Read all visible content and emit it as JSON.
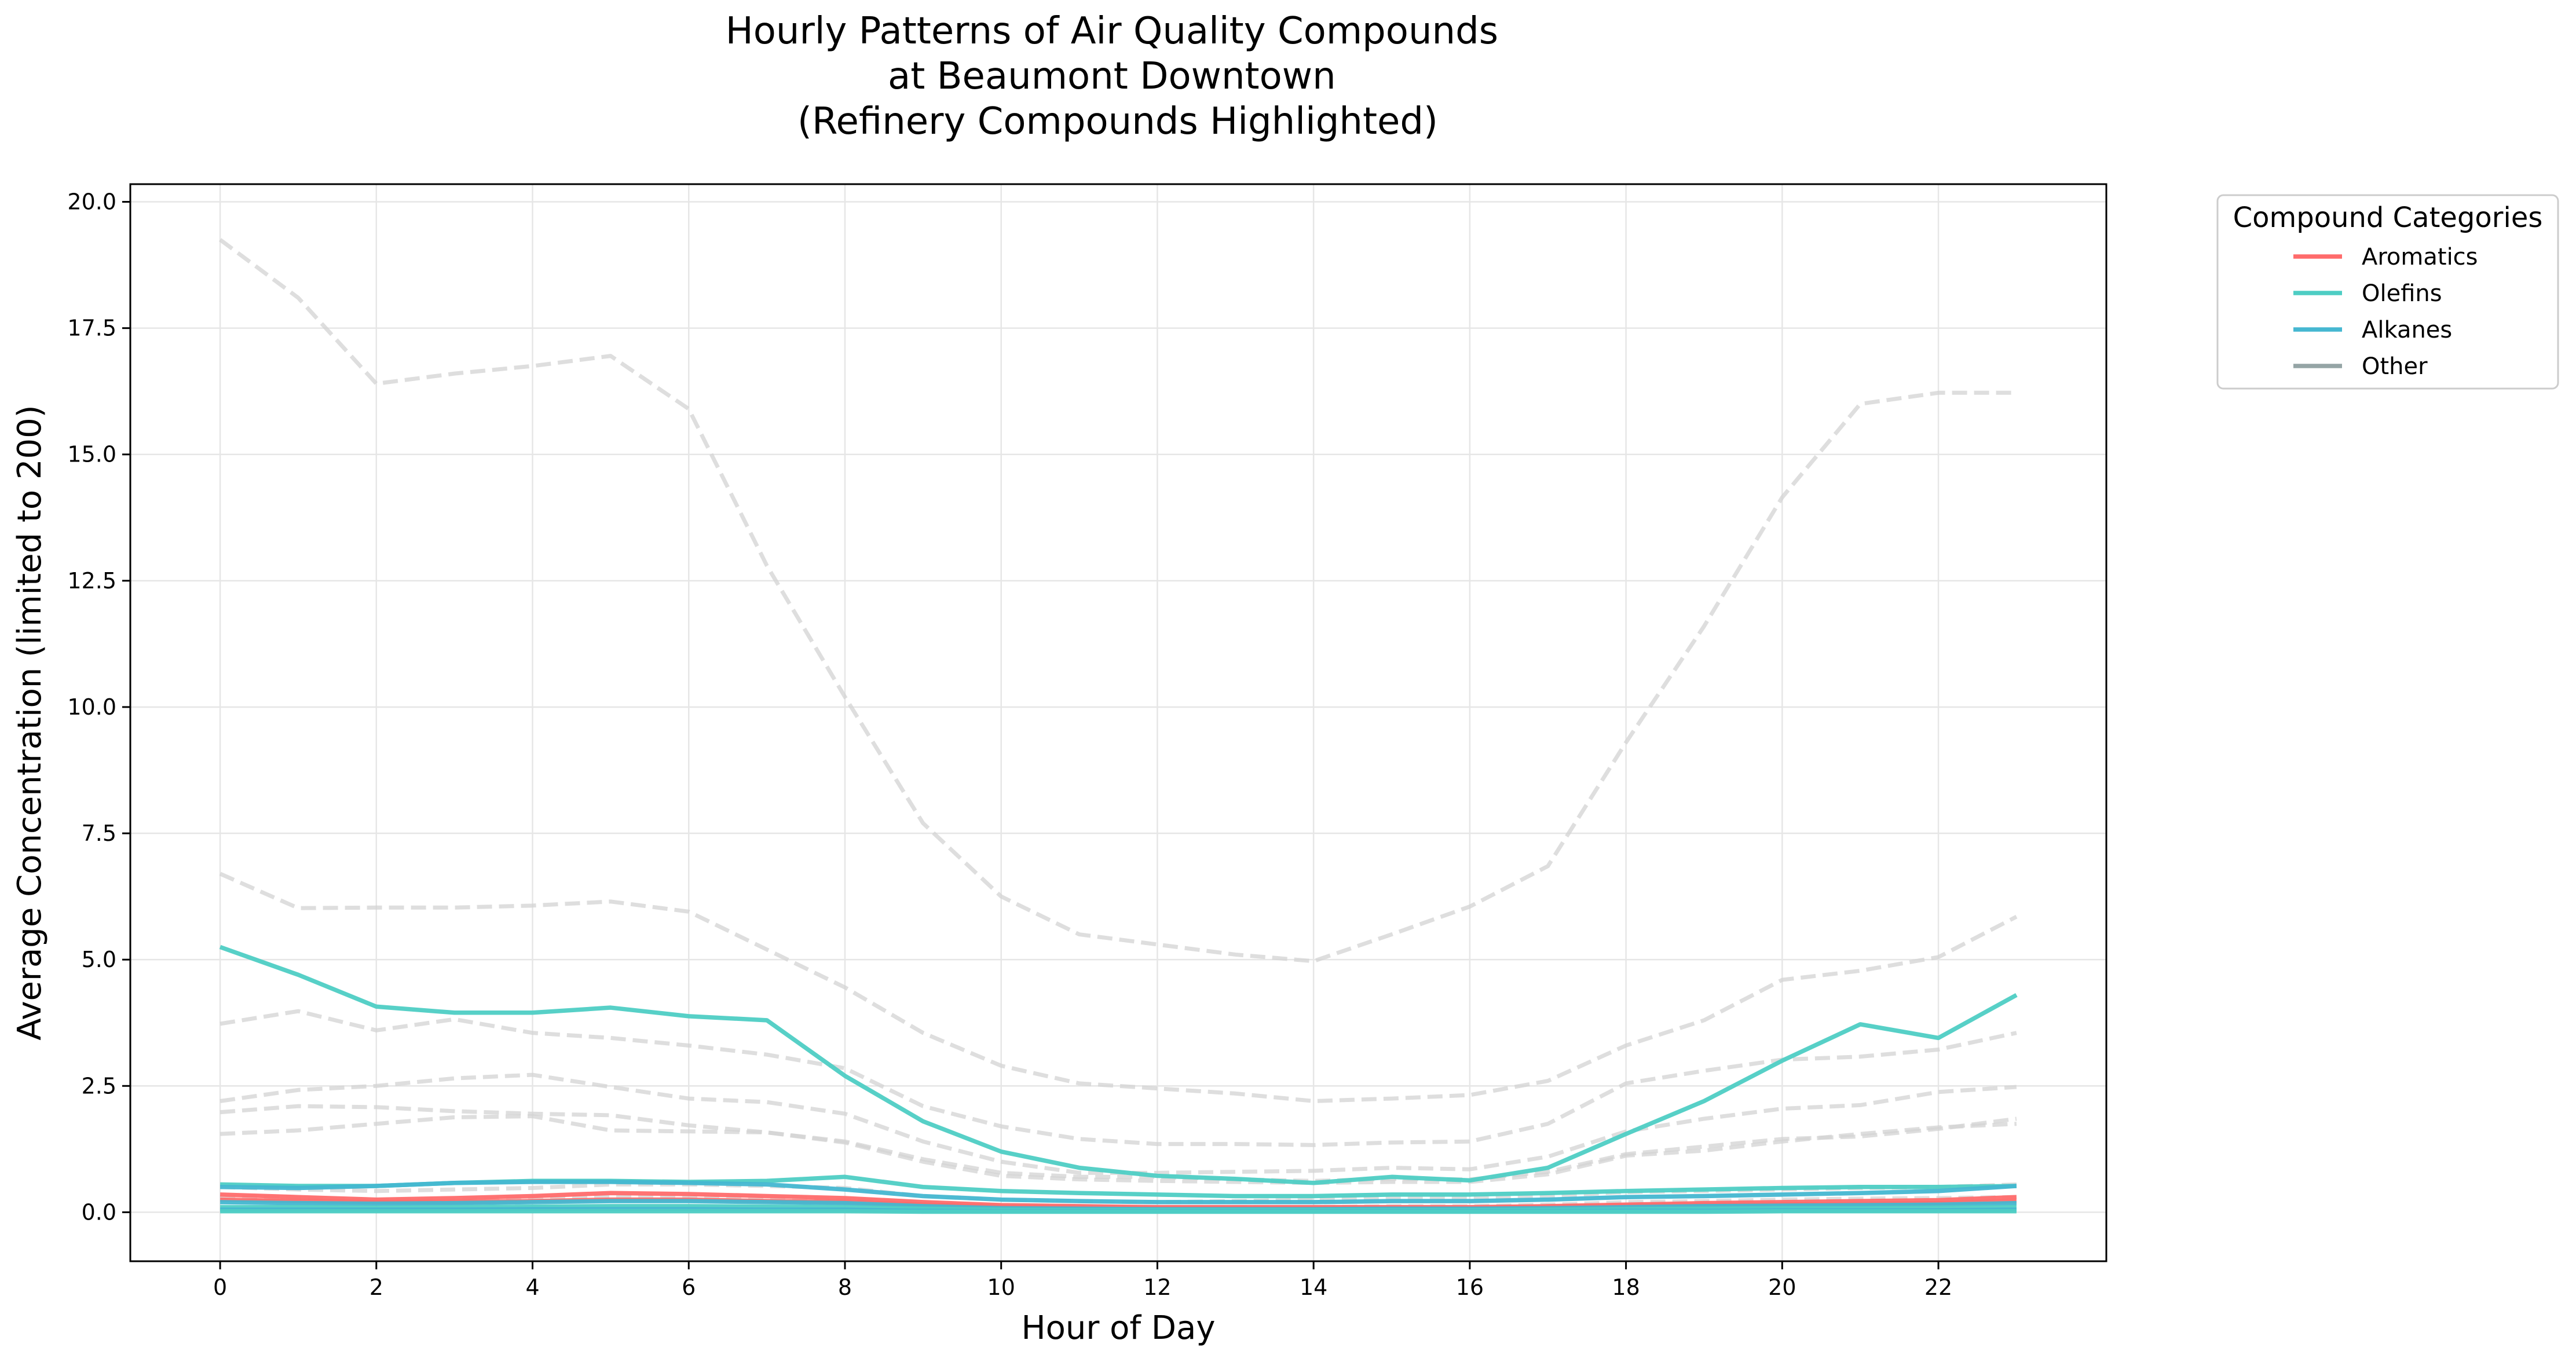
{
  "chart_data": {
    "type": "line",
    "title": "Hourly Patterns of Air Quality Compounds\nat Beaumont Downtown\n(Refinery Compounds Highlighted)",
    "title_lines": [
      "Hourly Patterns of Air Quality Compounds",
      "at Beaumont Downtown",
      "(Refinery Compounds Highlighted)"
    ],
    "xlabel": "Hour of Day",
    "ylabel": "Average Concentration (limited to 200)",
    "xlim": [
      -1.15,
      24.15
    ],
    "ylim": [
      -0.97,
      20.35
    ],
    "x_ticks": [
      0,
      2,
      4,
      6,
      8,
      10,
      12,
      14,
      16,
      18,
      20,
      22
    ],
    "x_tick_labels": [
      "0",
      "2",
      "4",
      "6",
      "8",
      "10",
      "12",
      "14",
      "16",
      "18",
      "20",
      "22"
    ],
    "y_ticks": [
      0.0,
      2.5,
      5.0,
      7.5,
      10.0,
      12.5,
      15.0,
      17.5,
      20.0
    ],
    "y_tick_labels": [
      "0.0",
      "2.5",
      "5.0",
      "7.5",
      "10.0",
      "12.5",
      "15.0",
      "17.5",
      "20.0"
    ],
    "grid": true,
    "legend": {
      "title": "Compound Categories",
      "placement": "outside-top-right",
      "entries": [
        {
          "label": "Aromatics",
          "color": "#ff6b6b"
        },
        {
          "label": "Olefins",
          "color": "#4ecdc4"
        },
        {
          "label": "Alkanes",
          "color": "#45b7d1"
        },
        {
          "label": "Other",
          "color": "#95a5a6"
        }
      ]
    },
    "x": [
      0,
      1,
      2,
      3,
      4,
      5,
      6,
      7,
      8,
      9,
      10,
      11,
      12,
      13,
      14,
      15,
      16,
      17,
      18,
      19,
      20,
      21,
      22,
      23
    ],
    "background_series": [
      {
        "color": "#d3d3d3",
        "style": "dashed",
        "values": [
          19.25,
          18.1,
          16.4,
          16.6,
          16.75,
          16.95,
          15.9,
          12.8,
          10.2,
          7.7,
          6.25,
          5.5,
          5.3,
          5.1,
          4.97,
          5.5,
          6.05,
          6.85,
          9.3,
          11.6,
          14.15,
          16.0,
          16.22,
          16.22
        ]
      },
      {
        "color": "#d3d3d3",
        "style": "dashed",
        "values": [
          6.7,
          6.02,
          6.03,
          6.03,
          6.07,
          6.15,
          5.95,
          5.2,
          4.45,
          3.55,
          2.9,
          2.55,
          2.45,
          2.35,
          2.2,
          2.25,
          2.32,
          2.6,
          3.3,
          3.8,
          4.6,
          4.78,
          5.05,
          5.85
        ]
      },
      {
        "color": "#d3d3d3",
        "style": "dashed",
        "values": [
          3.73,
          3.98,
          3.6,
          3.82,
          3.55,
          3.45,
          3.3,
          3.12,
          2.85,
          2.1,
          1.7,
          1.45,
          1.35,
          1.35,
          1.33,
          1.38,
          1.4,
          1.75,
          2.55,
          2.8,
          3.02,
          3.08,
          3.22,
          3.55
        ]
      },
      {
        "color": "#d3d3d3",
        "style": "dashed",
        "values": [
          2.2,
          2.42,
          2.5,
          2.65,
          2.72,
          2.48,
          2.25,
          2.18,
          1.95,
          1.4,
          1.0,
          0.78,
          0.78,
          0.8,
          0.82,
          0.88,
          0.85,
          1.1,
          1.6,
          1.85,
          2.05,
          2.12,
          2.38,
          2.48
        ]
      },
      {
        "color": "#d3d3d3",
        "style": "dashed",
        "values": [
          1.98,
          2.1,
          2.08,
          2.0,
          1.95,
          1.92,
          1.72,
          1.58,
          1.4,
          1.05,
          0.78,
          0.7,
          0.7,
          0.65,
          0.62,
          0.66,
          0.65,
          0.8,
          1.15,
          1.3,
          1.45,
          1.5,
          1.65,
          1.85
        ]
      },
      {
        "color": "#d3d3d3",
        "style": "dashed",
        "values": [
          1.55,
          1.62,
          1.75,
          1.88,
          1.9,
          1.62,
          1.6,
          1.58,
          1.38,
          1.0,
          0.72,
          0.65,
          0.62,
          0.6,
          0.58,
          0.6,
          0.6,
          0.75,
          1.12,
          1.22,
          1.4,
          1.55,
          1.68,
          1.75
        ]
      },
      {
        "color": "#d3d3d3",
        "style": "dashed",
        "values": [
          0.5,
          0.45,
          0.42,
          0.45,
          0.48,
          0.55,
          0.55,
          0.52,
          0.48,
          0.32,
          0.25,
          0.22,
          0.2,
          0.22,
          0.25,
          0.28,
          0.28,
          0.32,
          0.4,
          0.42,
          0.45,
          0.48,
          0.5,
          0.55
        ]
      },
      {
        "color": "#d3d3d3",
        "style": "dashed",
        "values": [
          0.3,
          0.28,
          0.25,
          0.25,
          0.28,
          0.3,
          0.3,
          0.28,
          0.25,
          0.18,
          0.12,
          0.1,
          0.1,
          0.1,
          0.1,
          0.12,
          0.12,
          0.15,
          0.2,
          0.22,
          0.25,
          0.27,
          0.28,
          0.3
        ]
      }
    ],
    "series": [
      {
        "category": "Olefins",
        "color": "#4ecdc4",
        "values": [
          5.25,
          4.7,
          4.07,
          3.95,
          3.95,
          4.05,
          3.88,
          3.8,
          2.7,
          1.8,
          1.2,
          0.88,
          0.72,
          0.66,
          0.58,
          0.7,
          0.63,
          0.88,
          1.55,
          2.2,
          3.0,
          3.72,
          3.45,
          4.3
        ]
      },
      {
        "category": "Olefins",
        "color": "#4ecdc4",
        "values": [
          0.55,
          0.52,
          0.52,
          0.58,
          0.62,
          0.62,
          0.6,
          0.62,
          0.7,
          0.5,
          0.42,
          0.38,
          0.35,
          0.32,
          0.32,
          0.35,
          0.35,
          0.38,
          0.42,
          0.45,
          0.48,
          0.5,
          0.5,
          0.52
        ]
      },
      {
        "category": "Alkanes",
        "color": "#45b7d1",
        "values": [
          0.5,
          0.48,
          0.52,
          0.58,
          0.6,
          0.6,
          0.58,
          0.55,
          0.45,
          0.32,
          0.25,
          0.22,
          0.2,
          0.2,
          0.2,
          0.22,
          0.22,
          0.25,
          0.3,
          0.32,
          0.35,
          0.38,
          0.42,
          0.52
        ]
      },
      {
        "category": "Aromatics",
        "color": "#ff6b6b",
        "values": [
          0.35,
          0.3,
          0.25,
          0.28,
          0.32,
          0.38,
          0.36,
          0.32,
          0.28,
          0.2,
          0.14,
          0.12,
          0.1,
          0.1,
          0.1,
          0.1,
          0.1,
          0.12,
          0.15,
          0.18,
          0.2,
          0.22,
          0.24,
          0.3
        ]
      },
      {
        "category": "Aromatics",
        "color": "#ff6b6b",
        "values": [
          0.25,
          0.22,
          0.2,
          0.2,
          0.22,
          0.25,
          0.25,
          0.22,
          0.2,
          0.15,
          0.1,
          0.08,
          0.08,
          0.08,
          0.07,
          0.08,
          0.08,
          0.1,
          0.12,
          0.14,
          0.15,
          0.16,
          0.18,
          0.22
        ]
      },
      {
        "category": "Alkanes",
        "color": "#45b7d1",
        "values": [
          0.2,
          0.18,
          0.17,
          0.18,
          0.2,
          0.22,
          0.22,
          0.2,
          0.18,
          0.12,
          0.08,
          0.07,
          0.06,
          0.06,
          0.06,
          0.07,
          0.07,
          0.08,
          0.1,
          0.12,
          0.13,
          0.14,
          0.15,
          0.18
        ]
      },
      {
        "category": "Olefins",
        "color": "#4ecdc4",
        "values": [
          0.1,
          0.1,
          0.09,
          0.1,
          0.11,
          0.12,
          0.12,
          0.11,
          0.1,
          0.07,
          0.05,
          0.04,
          0.04,
          0.04,
          0.04,
          0.04,
          0.04,
          0.05,
          0.06,
          0.07,
          0.08,
          0.08,
          0.09,
          0.1
        ]
      },
      {
        "category": "Alkanes",
        "color": "#45b7d1",
        "values": [
          0.05,
          0.05,
          0.05,
          0.05,
          0.06,
          0.06,
          0.06,
          0.05,
          0.05,
          0.03,
          0.02,
          0.02,
          0.02,
          0.02,
          0.02,
          0.02,
          0.02,
          0.02,
          0.03,
          0.03,
          0.04,
          0.04,
          0.04,
          0.05
        ]
      },
      {
        "category": "Olefins",
        "color": "#4ecdc4",
        "values": [
          0.02,
          0.02,
          0.02,
          0.02,
          0.02,
          0.02,
          0.02,
          0.02,
          0.02,
          0.01,
          0.01,
          0.01,
          0.01,
          0.01,
          0.01,
          0.01,
          0.01,
          0.01,
          0.01,
          0.01,
          0.02,
          0.02,
          0.02,
          0.02
        ]
      }
    ]
  }
}
